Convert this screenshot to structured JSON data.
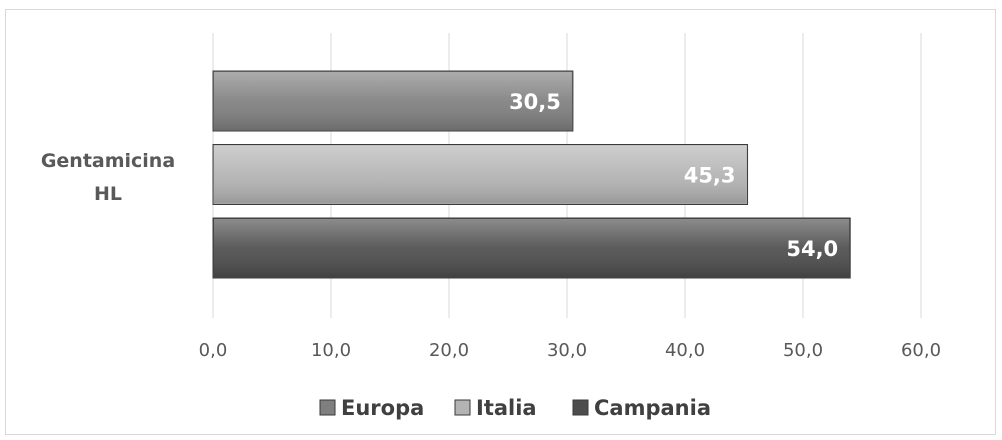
{
  "chart_data": {
    "type": "bar",
    "orientation": "horizontal",
    "categories": [
      "Gentamicina HL"
    ],
    "category_label_lines": [
      "Gentamicina",
      "HL"
    ],
    "series": [
      {
        "name": "Europa",
        "values": [
          30.5
        ],
        "label": "30,5",
        "color": "#7f7f7f"
      },
      {
        "name": "Italia",
        "values": [
          45.3
        ],
        "label": "45,3",
        "color": "#b3b3b3"
      },
      {
        "name": "Campania",
        "values": [
          54.0
        ],
        "label": "54,0",
        "color": "#4d4d4d"
      }
    ],
    "xlim": [
      0,
      60
    ],
    "xticks": [
      0,
      10,
      20,
      30,
      40,
      50,
      60
    ],
    "xtick_labels": [
      "0,0",
      "10,0",
      "20,0",
      "30,0",
      "40,0",
      "50,0",
      "60,0"
    ],
    "grid": true,
    "legend_position": "bottom",
    "title": "",
    "xlabel": "",
    "ylabel": ""
  }
}
